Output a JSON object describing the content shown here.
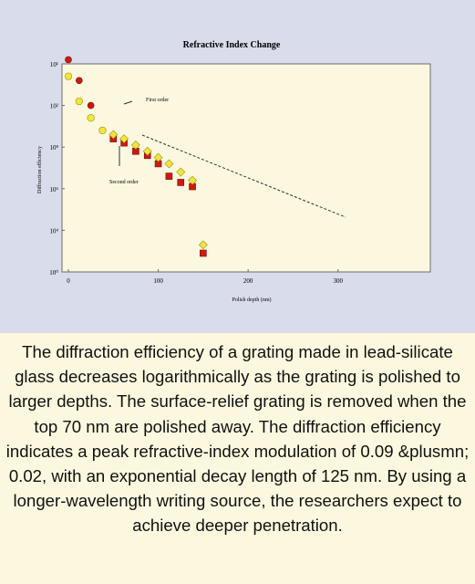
{
  "chart_data": {
    "type": "scatter",
    "title": "Refractive Index Change",
    "xlabel": "Polish depth (nm)",
    "ylabel": "Diffraction efficiency",
    "x_ticks": [
      "0",
      "100",
      "200",
      "300"
    ],
    "y_ticks": [
      "10⁰",
      "10⁴",
      "10⁶",
      "10⁸",
      "10²",
      "10¹"
    ],
    "xlim": [
      0,
      350
    ],
    "grid": false,
    "series": [
      {
        "name": "First order",
        "marker": "red circle/square",
        "color": "#cc1a12",
        "x": [
          0,
          12,
          25,
          38,
          50,
          62,
          75,
          88,
          100,
          112,
          125,
          138,
          150
        ],
        "y_tick_pos": [
          5.1,
          4.6,
          4.0,
          3.4,
          3.2,
          3.1,
          2.9,
          2.8,
          2.6,
          2.3,
          2.15,
          2.05,
          0.45
        ]
      },
      {
        "name": "Second order",
        "marker": "yellow circle/diamond",
        "color": "#f1e63a",
        "x": [
          0,
          12,
          25,
          38,
          50,
          62,
          75,
          88,
          100,
          112,
          125,
          138,
          150
        ],
        "y_tick_pos": [
          4.7,
          4.1,
          3.7,
          3.4,
          3.3,
          3.2,
          3.05,
          2.9,
          2.75,
          2.6,
          2.4,
          2.2,
          0.65
        ]
      }
    ],
    "annotations": [
      "First order",
      "Second order"
    ],
    "trendline": "dashed line through data"
  },
  "caption": "The diffraction efficiency of a grating made in lead-silicate glass decreases logarithmically as the grating is polished to larger depths. The surface-relief grating is removed when the top 70 nm are polished away. The diffraction efficiency indicates a peak refractive-index modulation of 0.09 &plusmn; 0.02, with an exponential decay length of 125 nm. By using a longer-wavelength writing source, the researchers expect to achieve deeper penetration.",
  "colors": {
    "figure_background": "#d9dceb",
    "plot_background": "#fbf8df",
    "first_order": "#cc1a12",
    "second_order": "#f1e63a"
  }
}
